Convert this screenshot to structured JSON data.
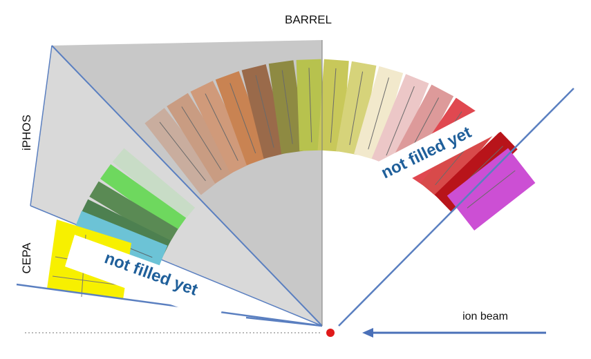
{
  "labels": {
    "barrel": "BARREL",
    "iphos": "iPHOS",
    "cepa": "CEPA",
    "ion_beam": "ion beam",
    "note_right": "not filled yet",
    "note_left": "not filled yet"
  },
  "colors": {
    "barrel_region": "#c8c8c8",
    "side_region": "#d9d9d9",
    "boundary_line": "#5a7fc0",
    "beam_arrow": "#4a70b8",
    "interaction_point": "#e01a1a",
    "note_text": "#1f5f9a",
    "cepa_module": "#f7f000",
    "barrel_modules": [
      "#c9ad9e",
      "#c99c82",
      "#d09a7a",
      "#c98352",
      "#9a6a4a",
      "#8e8a42",
      "#b7c24e",
      "#c8c85a",
      "#d6d37a",
      "#f2e9cc",
      "#ecc7c7",
      "#dd9a9a",
      "#e04850",
      "#d84a4a",
      "#b8141a",
      "#cc4fd4"
    ],
    "iphos_modules": [
      "#c8dcc6",
      "#6ed85e",
      "#5a8a54",
      "#4d8050",
      "#6cc3d6"
    ]
  }
}
